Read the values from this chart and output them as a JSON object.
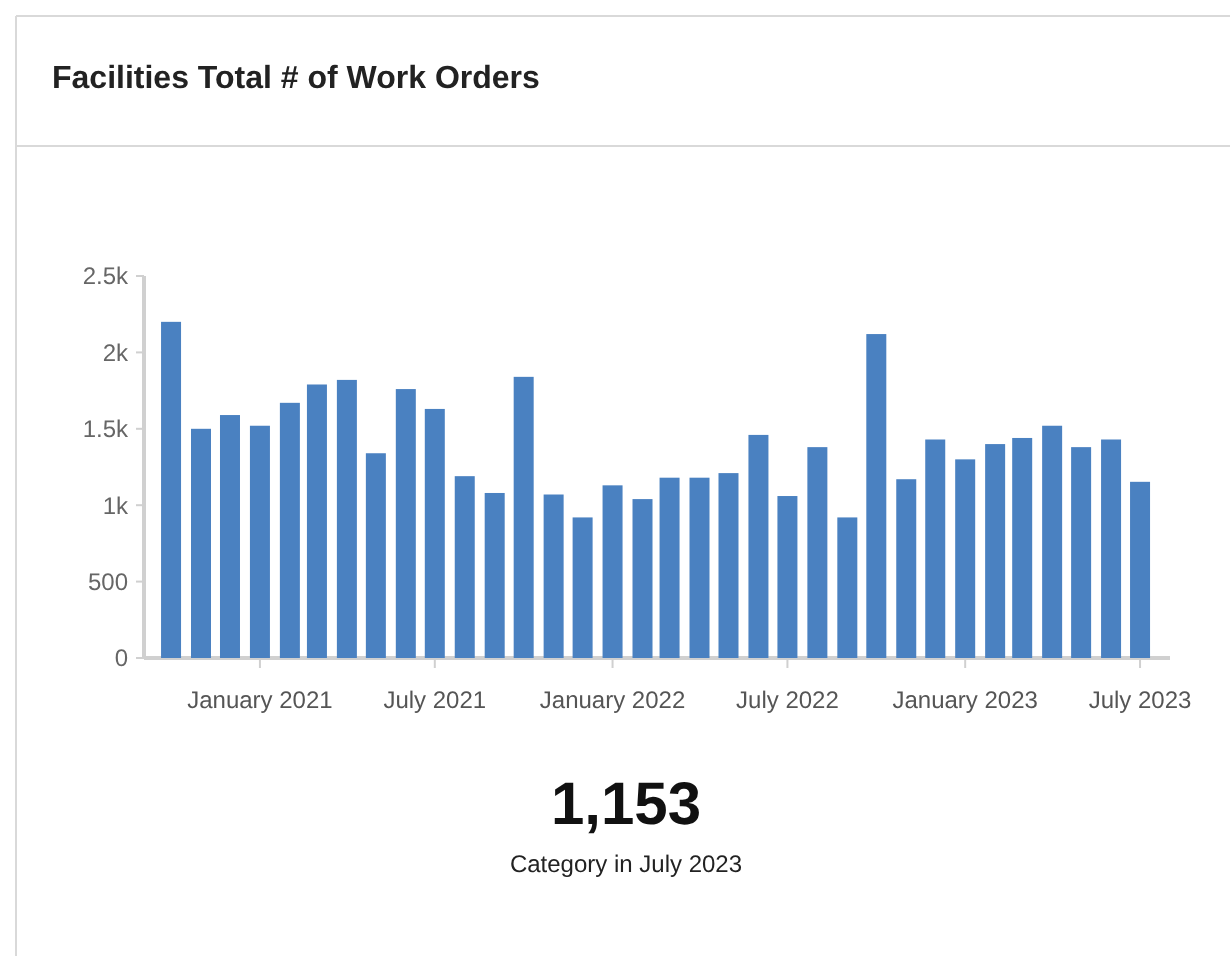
{
  "chart_data": {
    "type": "bar",
    "title": "Facilities Total # of Work Orders",
    "x": [
      "2020-10",
      "2020-11",
      "2020-12",
      "2021-01",
      "2021-02",
      "2021-03",
      "2021-04",
      "2021-05",
      "2021-06",
      "2021-07",
      "2021-08",
      "2021-09",
      "2021-10",
      "2021-11",
      "2021-12",
      "2022-01",
      "2022-02",
      "2022-03",
      "2022-04",
      "2022-05",
      "2022-06",
      "2022-07",
      "2022-08",
      "2022-09",
      "2022-10",
      "2022-11",
      "2022-12",
      "2023-01",
      "2023-02",
      "2023-03",
      "2023-04",
      "2023-05",
      "2023-06",
      "2023-07"
    ],
    "values": [
      2200,
      1500,
      1590,
      1520,
      1670,
      1790,
      1820,
      1340,
      1760,
      1630,
      1190,
      1080,
      1840,
      1070,
      920,
      1130,
      1040,
      1180,
      1180,
      1210,
      1460,
      1060,
      1380,
      920,
      2120,
      1170,
      1430,
      1300,
      1400,
      1440,
      1520,
      1380,
      1430,
      1153
    ],
    "color": "#4a81c1",
    "ylim": [
      0,
      2500
    ],
    "yticks": [
      {
        "value": 0,
        "label": "0"
      },
      {
        "value": 500,
        "label": "500"
      },
      {
        "value": 1000,
        "label": "1k"
      },
      {
        "value": 1500,
        "label": "1.5k"
      },
      {
        "value": 2000,
        "label": "2k"
      },
      {
        "value": 2500,
        "label": "2.5k"
      }
    ],
    "xlim": [
      "2020-09-03",
      "2023-08-01"
    ],
    "xticks": [
      {
        "value": "2021-01",
        "label": "January 2021"
      },
      {
        "value": "2021-07",
        "label": "July 2021"
      },
      {
        "value": "2022-01",
        "label": "January 2022"
      },
      {
        "value": "2022-07",
        "label": "July 2022"
      },
      {
        "value": "2023-01",
        "label": "January 2023"
      },
      {
        "value": "2023-07",
        "label": "July 2023"
      }
    ],
    "annotations": [
      "1,153",
      "Category in July 2023"
    ]
  }
}
